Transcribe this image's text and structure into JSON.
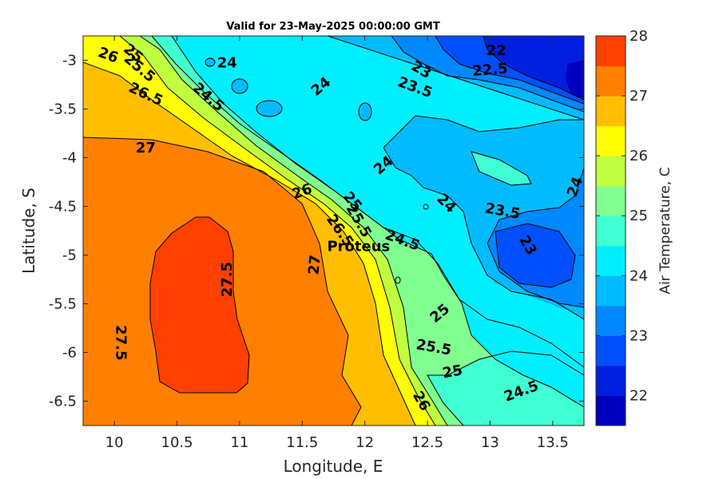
{
  "chart_data": {
    "type": "heatmap",
    "title": "Valid for 23-May-2025 00:00:00 GMT",
    "xlabel": "Longitude, E",
    "ylabel": "Latitude, S",
    "xlim": [
      9.75,
      13.75
    ],
    "ylim": [
      -6.75,
      -2.75
    ],
    "x_ticks": [
      10,
      10.5,
      11,
      11.5,
      12,
      12.5,
      13,
      13.5
    ],
    "x_tick_labels": [
      "10",
      "10.5",
      "11",
      "11.5",
      "12",
      "12.5",
      "13",
      "13.5"
    ],
    "y_ticks": [
      -3,
      -3.5,
      -4,
      -4.5,
      -5,
      -5.5,
      -6,
      -6.5
    ],
    "y_tick_labels": [
      "-3",
      "-3.5",
      "-4",
      "-4.5",
      "-5",
      "-5.5",
      "-6",
      "-6.5"
    ],
    "colorbar": {
      "label": "Air Temperature, C",
      "range": [
        21.5,
        28
      ],
      "ticks": [
        22,
        23,
        24,
        25,
        26,
        27,
        28
      ],
      "tick_labels": [
        "22",
        "23",
        "24",
        "25",
        "26",
        "27",
        "28"
      ],
      "levels": [
        21.5,
        22,
        22.5,
        23,
        23.5,
        24,
        24.5,
        25,
        25.5,
        26,
        26.5,
        27,
        27.5,
        28
      ],
      "colors": [
        "#0000bf",
        "#0020e0",
        "#0050ff",
        "#0088ff",
        "#00bcff",
        "#00efff",
        "#40ffd0",
        "#80ff90",
        "#bfff40",
        "#ffff00",
        "#ffbf00",
        "#ff8000",
        "#ff4000"
      ]
    },
    "annotations": [
      {
        "text": "Proteus",
        "lon": 11.95,
        "lat": -4.9
      }
    ],
    "contour_labels": [
      {
        "text": "26",
        "lon": 9.95,
        "lat": -2.95,
        "rot": 20
      },
      {
        "text": "25",
        "lon": 10.15,
        "lat": -2.93,
        "rot": 40
      },
      {
        "text": "25.5",
        "lon": 10.2,
        "lat": -3.08,
        "rot": 40
      },
      {
        "text": "26.5",
        "lon": 10.25,
        "lat": -3.35,
        "rot": 25
      },
      {
        "text": "24",
        "lon": 10.9,
        "lat": -3.03,
        "rot": 0
      },
      {
        "text": "24.5",
        "lon": 10.75,
        "lat": -3.38,
        "rot": 40
      },
      {
        "text": "24",
        "lon": 11.65,
        "lat": -3.27,
        "rot": -40
      },
      {
        "text": "23",
        "lon": 12.45,
        "lat": -3.1,
        "rot": 30
      },
      {
        "text": "23.5",
        "lon": 12.4,
        "lat": -3.28,
        "rot": 20
      },
      {
        "text": "22.5",
        "lon": 13.0,
        "lat": -3.1,
        "rot": -5
      },
      {
        "text": "22",
        "lon": 13.05,
        "lat": -2.9,
        "rot": 0
      },
      {
        "text": "27",
        "lon": 10.25,
        "lat": -3.9,
        "rot": 0
      },
      {
        "text": "24",
        "lon": 12.15,
        "lat": -4.08,
        "rot": -40
      },
      {
        "text": "26",
        "lon": 11.5,
        "lat": -4.35,
        "rot": -20
      },
      {
        "text": "25",
        "lon": 11.9,
        "lat": -4.45,
        "rot": 50
      },
      {
        "text": "25.5",
        "lon": 11.95,
        "lat": -4.65,
        "rot": 60
      },
      {
        "text": "26.5",
        "lon": 11.8,
        "lat": -4.75,
        "rot": 55
      },
      {
        "text": "24",
        "lon": 12.65,
        "lat": -4.47,
        "rot": 45
      },
      {
        "text": "24.5",
        "lon": 12.3,
        "lat": -4.85,
        "rot": 20
      },
      {
        "text": "24",
        "lon": 13.68,
        "lat": -4.3,
        "rot": -70
      },
      {
        "text": "23.5",
        "lon": 13.1,
        "lat": -4.55,
        "rot": 10
      },
      {
        "text": "23",
        "lon": 13.3,
        "lat": -4.9,
        "rot": 60
      },
      {
        "text": "27",
        "lon": 11.6,
        "lat": -5.1,
        "rot": -85
      },
      {
        "text": "27.5",
        "lon": 10.9,
        "lat": -5.25,
        "rot": -90
      },
      {
        "text": "27.5",
        "lon": 10.05,
        "lat": -5.9,
        "rot": 90
      },
      {
        "text": "25",
        "lon": 12.6,
        "lat": -5.6,
        "rot": -40
      },
      {
        "text": "25.5",
        "lon": 12.55,
        "lat": -5.95,
        "rot": 10
      },
      {
        "text": "25",
        "lon": 12.7,
        "lat": -6.2,
        "rot": -10
      },
      {
        "text": "26",
        "lon": 12.45,
        "lat": -6.5,
        "rot": 60
      },
      {
        "text": "24.5",
        "lon": 13.25,
        "lat": -6.4,
        "rot": -20
      }
    ],
    "grid": false,
    "legend": "colorbar-right"
  }
}
